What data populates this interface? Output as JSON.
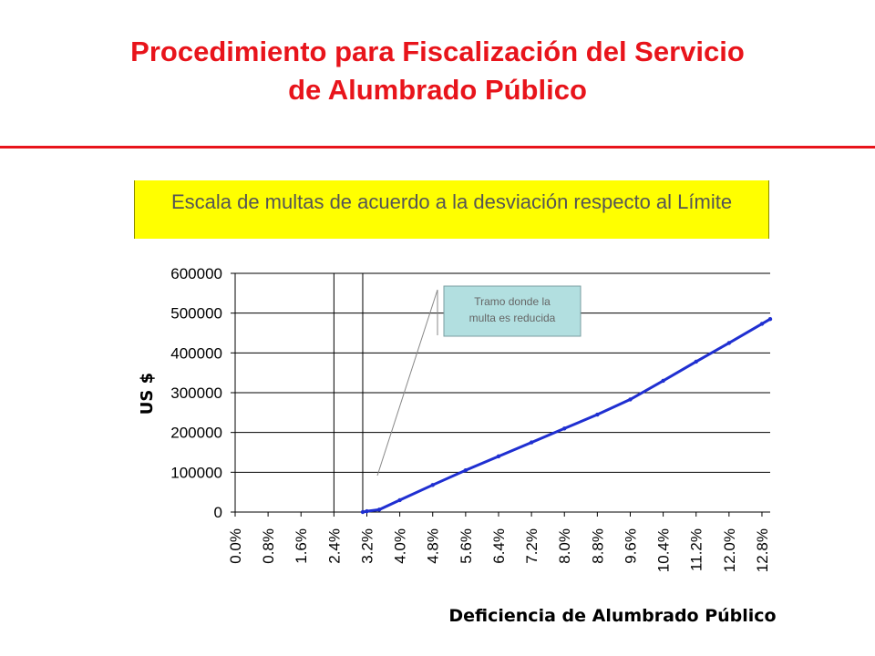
{
  "slide": {
    "title_line1": "Procedimiento para Fiscalización del Servicio",
    "title_line2": "de Alumbrado Público",
    "banner_text": "Escala de multas de acuerdo a la desviación respecto al Límite"
  },
  "colors": {
    "title": "#e8141b",
    "rule": "#e8141b",
    "banner_bg": "#ffff00",
    "series": "#1f2fd1",
    "callout_bg": "#b2dfe0"
  },
  "chart_data": {
    "type": "line",
    "title": "",
    "xlabel": "Deficiencia de Alumbrado Público",
    "ylabel": "US $",
    "ylim": [
      0,
      600000
    ],
    "yticks": [
      "600000",
      "500000",
      "400000",
      "300000",
      "200000",
      "100000",
      "0"
    ],
    "xticks": [
      "0.0%",
      "0.8%",
      "1.6%",
      "2.4%",
      "3.2%",
      "4.0%",
      "4.8%",
      "5.6%",
      "6.4%",
      "7.2%",
      "8.0%",
      "8.8%",
      "9.6%",
      "10.4%",
      "11.2%",
      "12.0%",
      "12.8%"
    ],
    "xlim_percent": [
      0.0,
      13.0
    ],
    "grid": "horizontal",
    "vertical_reference_lines_percent": [
      2.4,
      3.1
    ],
    "series": [
      {
        "name": "",
        "x_percent": [
          3.1,
          3.2,
          3.5,
          4.0,
          4.8,
          5.6,
          6.4,
          7.2,
          8.0,
          8.8,
          9.6,
          10.4,
          11.2,
          12.0,
          12.8,
          13.0
        ],
        "values": [
          0,
          2000,
          6000,
          30000,
          68000,
          105000,
          140000,
          175000,
          210000,
          245000,
          283000,
          330000,
          378000,
          425000,
          473000,
          485000
        ]
      }
    ],
    "annotations": [
      {
        "text_line1": "Tramo donde la",
        "text_line2": "multa es  reducida"
      }
    ]
  }
}
